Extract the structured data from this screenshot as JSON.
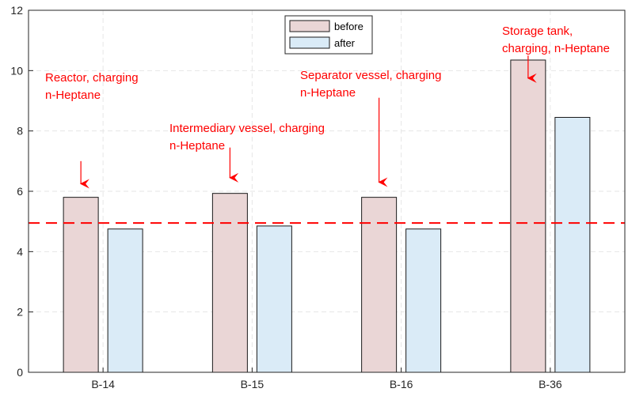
{
  "chart_data": {
    "type": "bar",
    "categories": [
      "B-14",
      "B-15",
      "B-16",
      "B-36"
    ],
    "series": [
      {
        "name": "before",
        "values": [
          5.8,
          5.93,
          5.8,
          10.35
        ],
        "color": "#ead6d6"
      },
      {
        "name": "after",
        "values": [
          4.75,
          4.85,
          4.75,
          8.45
        ],
        "color": "#daebf7"
      }
    ],
    "ylim": [
      0,
      12
    ],
    "yticks": [
      "0",
      "2",
      "4",
      "6",
      "8",
      "10",
      "12"
    ],
    "grid": true,
    "legend_position": "top-center",
    "reference_line": {
      "y": 4.95,
      "color": "#ff0000",
      "style": "dashed"
    },
    "annotations": [
      {
        "lines": [
          "Reactor, charging",
          "n-Heptane"
        ],
        "category": "B-14",
        "arrow_top": 7.0,
        "arrow_bottom": 6.25
      },
      {
        "lines": [
          "Intermediary vessel, charging",
          "n-Heptane"
        ],
        "category": "B-15",
        "arrow_top": 7.45,
        "arrow_bottom": 6.45
      },
      {
        "lines": [
          "Separator vessel, charging",
          "n-Heptane"
        ],
        "category": "B-16",
        "arrow_top": 9.1,
        "arrow_bottom": 6.3
      },
      {
        "lines": [
          "Storage tank,",
          "charging, n-Heptane"
        ],
        "category": "B-36",
        "arrow_top": 10.5,
        "arrow_bottom": 9.75
      }
    ],
    "annotation_color": "#ff0000"
  }
}
